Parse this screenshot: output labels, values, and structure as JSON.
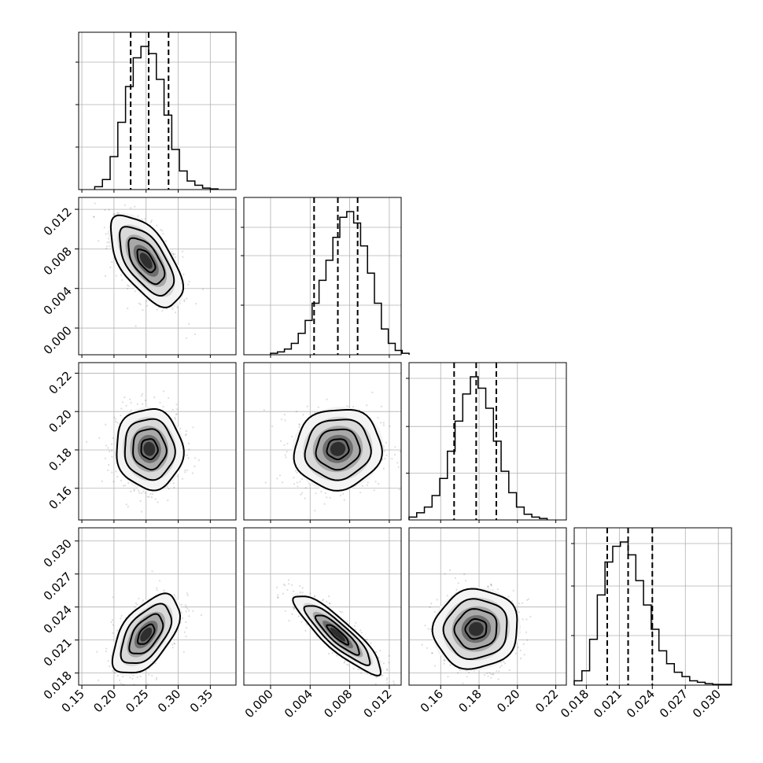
{
  "chart_data": {
    "type": "corner",
    "n_params": 4,
    "grid": true,
    "labels": [],
    "params": [
      {
        "range": [
          0.145,
          0.39
        ],
        "ticks": [
          0.15,
          0.2,
          0.25,
          0.3,
          0.35
        ],
        "tick_labels": [
          "0.15",
          "0.20",
          "0.25",
          "0.30",
          "0.35"
        ],
        "hist_bins": [
          0.17,
          0.182,
          0.194,
          0.206,
          0.218,
          0.23,
          0.242,
          0.254,
          0.266,
          0.278,
          0.29,
          0.302,
          0.314,
          0.326,
          0.338,
          0.35,
          0.362
        ],
        "hist_counts": [
          2,
          7,
          23,
          47,
          72,
          92,
          100,
          95,
          77,
          52,
          28,
          13,
          6,
          3,
          1,
          0.5
        ],
        "quantiles": [
          0.226,
          0.254,
          0.285
        ],
        "hist_ticks": [
          0.3,
          0.6,
          0.9
        ]
      },
      {
        "range": [
          -0.0027,
          0.0132
        ],
        "ticks": [
          0.0,
          0.004,
          0.008,
          0.012
        ],
        "tick_labels": [
          "0.000",
          "0.004",
          "0.008",
          "0.012"
        ],
        "hist_bins": [
          0.0024,
          0.0031,
          0.0038,
          0.0045,
          0.0052,
          0.0059,
          0.0066,
          0.0073,
          0.008,
          0.0087,
          0.0094,
          0.0101,
          0.0108,
          0.0115,
          0.0122,
          0.0129,
          0.0136,
          0.0143,
          0.015,
          0.0157,
          0.0164
        ],
        "hist_counts": [
          1,
          2,
          4,
          8,
          15,
          24,
          36,
          52,
          66,
          82,
          96,
          100,
          92,
          76,
          57,
          36,
          18,
          8,
          3,
          1
        ],
        "quantiles": [
          0.0044,
          0.0068,
          0.0088
        ],
        "hist_ticks": [
          0.35,
          0.7,
          0.9
        ],
        "hist_x_offset": -0.0024
      },
      {
        "range": [
          0.1435,
          0.2255
        ],
        "ticks": [
          0.16,
          0.18,
          0.2,
          0.22
        ],
        "tick_labels": [
          "0.16",
          "0.18",
          "0.20",
          "0.22"
        ],
        "hist_bins": [
          0.1435,
          0.1475,
          0.1515,
          0.1555,
          0.1595,
          0.1635,
          0.1675,
          0.1715,
          0.1755,
          0.1795,
          0.1835,
          0.1875,
          0.1915,
          0.1955,
          0.1995,
          0.2035,
          0.2075,
          0.2115,
          0.2155
        ],
        "hist_counts": [
          2,
          5,
          9,
          17,
          29,
          48,
          69,
          88,
          100,
          92,
          78,
          55,
          34,
          19,
          9,
          4,
          2,
          1
        ],
        "quantiles": [
          0.167,
          0.1785,
          0.189
        ],
        "hist_ticks": [
          0.33,
          0.66,
          1.0
        ]
      },
      {
        "range": [
          0.0169,
          0.0312
        ],
        "ticks": [
          0.018,
          0.021,
          0.024,
          0.027,
          0.03
        ],
        "tick_labels": [
          "0.018",
          "0.021",
          "0.024",
          "0.027",
          "0.030"
        ],
        "hist_bins": [
          0.0169,
          0.0176,
          0.0183,
          0.019,
          0.0197,
          0.0204,
          0.0211,
          0.0218,
          0.0225,
          0.0232,
          0.0239,
          0.0246,
          0.0253,
          0.026,
          0.0267,
          0.0274,
          0.0281,
          0.0288,
          0.0295,
          0.0302,
          0.0309,
          0.0312
        ],
        "hist_counts": [
          3,
          10,
          32,
          63,
          86,
          97,
          100,
          91,
          73,
          56,
          39,
          24,
          15,
          9,
          6,
          3,
          2,
          1,
          0.5,
          0.5,
          0.5
        ],
        "quantiles": [
          0.0199,
          0.0218,
          0.024
        ],
        "hist_ticks": [
          0.35,
          0.7,
          1.0
        ]
      }
    ],
    "pairs": [
      {
        "row": 1,
        "col": 0,
        "mean": [
          0.25,
          0.0068
        ],
        "sd": [
          0.028,
          0.0023
        ],
        "rho": -0.6
      },
      {
        "row": 2,
        "col": 0,
        "mean": [
          0.255,
          0.1805
        ],
        "sd": [
          0.026,
          0.0105
        ],
        "rho": -0.05
      },
      {
        "row": 2,
        "col": 1,
        "mean": [
          0.0068,
          0.1805
        ],
        "sd": [
          0.0022,
          0.0105
        ],
        "rho": 0.05
      },
      {
        "row": 3,
        "col": 0,
        "mean": [
          0.25,
          0.0215
        ],
        "sd": [
          0.026,
          0.0018
        ],
        "rho": 0.55
      },
      {
        "row": 3,
        "col": 1,
        "mean": [
          0.0068,
          0.0215
        ],
        "sd": [
          0.0022,
          0.0018
        ],
        "rho": -0.88
      },
      {
        "row": 3,
        "col": 2,
        "mean": [
          0.1785,
          0.022
        ],
        "sd": [
          0.011,
          0.0018
        ],
        "rho": 0.05
      }
    ],
    "contour_levels_sigma": [
      0.5,
      1.0,
      1.5,
      2.0
    ]
  }
}
